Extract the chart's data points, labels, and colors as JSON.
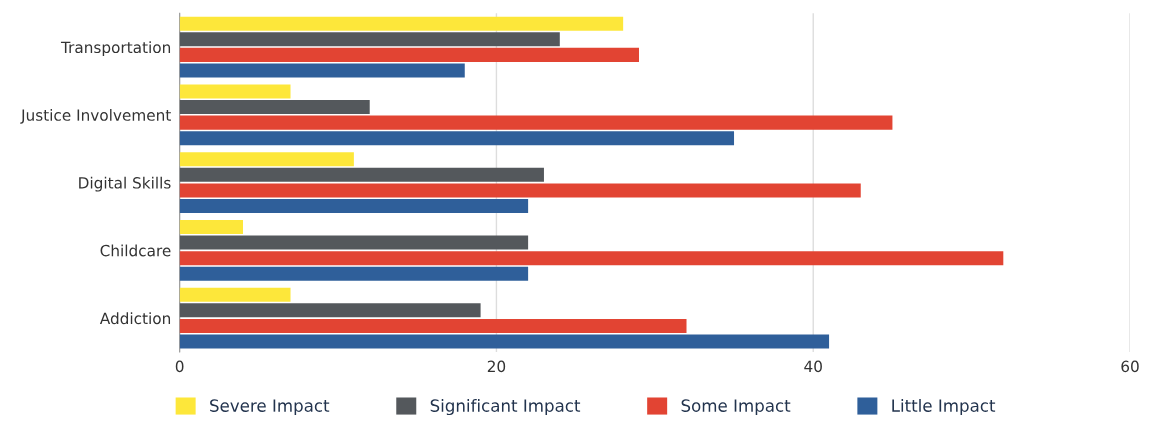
{
  "chart_data": {
    "type": "bar",
    "orientation": "horizontal",
    "categories": [
      "Transportation",
      "Justice Involvement",
      "Digital Skills",
      "Childcare",
      "Addiction"
    ],
    "series": [
      {
        "name": "Severe Impact",
        "color": "#fde73a",
        "values": [
          28,
          7,
          11,
          4,
          7
        ]
      },
      {
        "name": "Significant Impact",
        "color": "#54585c",
        "values": [
          24,
          12,
          23,
          22,
          19
        ]
      },
      {
        "name": "Some Impact",
        "color": "#e24433",
        "values": [
          29,
          45,
          43,
          52,
          32
        ]
      },
      {
        "name": "Little Impact",
        "color": "#2f5f9a",
        "values": [
          18,
          35,
          22,
          22,
          41
        ]
      }
    ],
    "xlim": [
      0,
      60
    ],
    "xticks": [
      0,
      20,
      40,
      60
    ],
    "grid": "x",
    "legend": "bottom"
  }
}
